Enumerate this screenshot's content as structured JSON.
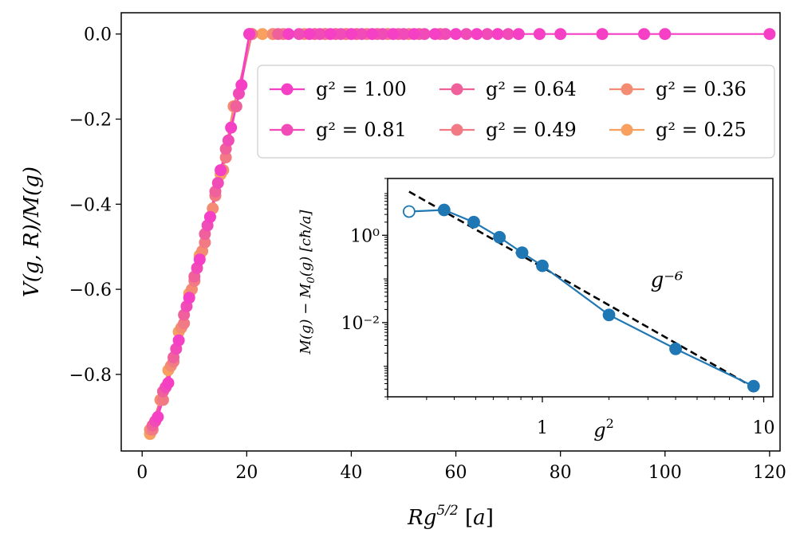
{
  "chart_data": [
    {
      "type": "line",
      "xlabel": "Rg^{5/2} [a]",
      "ylabel": "V(g,R)/M(g)",
      "xlim": [
        -4,
        122
      ],
      "ylim": [
        -0.98,
        0.05
      ],
      "xticks": [
        0,
        20,
        40,
        60,
        80,
        100,
        120
      ],
      "xtick_labels": [
        "0",
        "20",
        "40",
        "60",
        "80",
        "100",
        "120"
      ],
      "yticks": [
        0.0,
        -0.2,
        -0.4,
        -0.6,
        -0.8
      ],
      "ytick_labels": [
        "0.0",
        "−0.2",
        "−0.4",
        "−0.6",
        "−0.8"
      ],
      "legend_position": "upper-right",
      "legend_ncol": 3,
      "series": [
        {
          "name": "g² = 1.00",
          "color": "#f53fc4",
          "x": [
            3,
            5,
            7,
            9,
            11,
            13,
            15,
            17,
            19,
            20.5,
            28,
            32,
            36,
            40,
            44,
            48,
            52,
            56,
            60,
            64,
            68,
            72,
            76,
            80,
            88,
            96,
            100,
            120
          ],
          "y": [
            -0.9,
            -0.82,
            -0.72,
            -0.62,
            -0.53,
            -0.43,
            -0.32,
            -0.22,
            -0.12,
            0.0,
            0,
            0,
            0,
            0,
            0,
            0,
            0,
            0,
            0,
            0,
            0,
            0,
            0,
            0,
            0,
            0,
            0,
            0
          ]
        },
        {
          "name": "g² = 0.81",
          "color": "#f14bb8",
          "x": [
            2.5,
            4.5,
            6.5,
            8.5,
            10.5,
            12.5,
            14.5,
            16.5,
            18.5,
            20.5,
            30,
            34,
            38,
            42,
            46,
            50,
            54,
            58,
            62,
            66,
            70
          ],
          "y": [
            -0.91,
            -0.83,
            -0.74,
            -0.64,
            -0.55,
            -0.45,
            -0.35,
            -0.25,
            -0.14,
            0.0,
            0,
            0,
            0,
            0,
            0,
            0,
            0,
            0,
            0,
            0,
            0
          ]
        },
        {
          "name": "g² = 0.64",
          "color": "#f0609a",
          "x": [
            2,
            4,
            6,
            8,
            10,
            12,
            14,
            16,
            18,
            20.5,
            26,
            33,
            37,
            41,
            45,
            49,
            53,
            57
          ],
          "y": [
            -0.92,
            -0.84,
            -0.76,
            -0.66,
            -0.57,
            -0.47,
            -0.37,
            -0.27,
            -0.17,
            0.0,
            0,
            0,
            0,
            0,
            0,
            0,
            0,
            0
          ]
        },
        {
          "name": "g² = 0.49",
          "color": "#f27a84",
          "x": [
            2,
            4,
            6,
            8,
            10,
            12,
            14,
            16,
            18,
            21,
            27,
            35,
            39,
            43,
            47,
            51
          ],
          "y": [
            -0.93,
            -0.86,
            -0.77,
            -0.68,
            -0.58,
            -0.49,
            -0.38,
            -0.29,
            -0.17,
            0.0,
            0,
            0,
            0,
            0,
            0,
            0
          ]
        },
        {
          "name": "g² = 0.36",
          "color": "#f48b73",
          "x": [
            1.5,
            3.5,
            5.5,
            7.5,
            9.5,
            11.5,
            13.5,
            15.5,
            17.5,
            21,
            25,
            31,
            35,
            39
          ],
          "y": [
            -0.93,
            -0.86,
            -0.78,
            -0.69,
            -0.6,
            -0.51,
            -0.41,
            -0.32,
            -0.17,
            0.0,
            0,
            0,
            0,
            0
          ]
        },
        {
          "name": "g² = 0.25",
          "color": "#f8a060",
          "x": [
            1.5,
            2.5,
            3.5,
            5,
            7,
            9,
            11,
            13,
            15,
            17.5,
            21,
            23,
            25
          ],
          "y": [
            -0.94,
            -0.91,
            -0.86,
            -0.79,
            -0.7,
            -0.61,
            -0.52,
            -0.43,
            -0.33,
            -0.17,
            0.0,
            0,
            0
          ]
        }
      ]
    },
    {
      "type": "scatter",
      "scale": "log-log",
      "xlabel": "g²",
      "ylabel": "M(g) − M₀(g) [cħ/a]",
      "xlim": [
        0.2,
        11
      ],
      "ylim": [
        0.0002,
        20
      ],
      "xtick_labels": [
        "1",
        "10"
      ],
      "ytick_labels": [
        "10⁰",
        "10⁻²"
      ],
      "annotation": "g⁻⁶",
      "series": [
        {
          "name": "M(g) − M₀(g)",
          "color": "#1f77b4",
          "x": [
            0.25,
            0.36,
            0.49,
            0.64,
            0.81,
            1.0,
            2.0,
            4.0,
            9.0
          ],
          "y": [
            3.5,
            3.8,
            2.0,
            0.9,
            0.4,
            0.2,
            0.015,
            0.0025,
            0.00035
          ],
          "open_marker_indices": [
            0
          ]
        },
        {
          "name": "g^-6 fit",
          "color": "#000000",
          "style": "dashed",
          "x": [
            0.25,
            9.0
          ],
          "y": [
            10.0,
            0.00033
          ]
        }
      ]
    }
  ]
}
